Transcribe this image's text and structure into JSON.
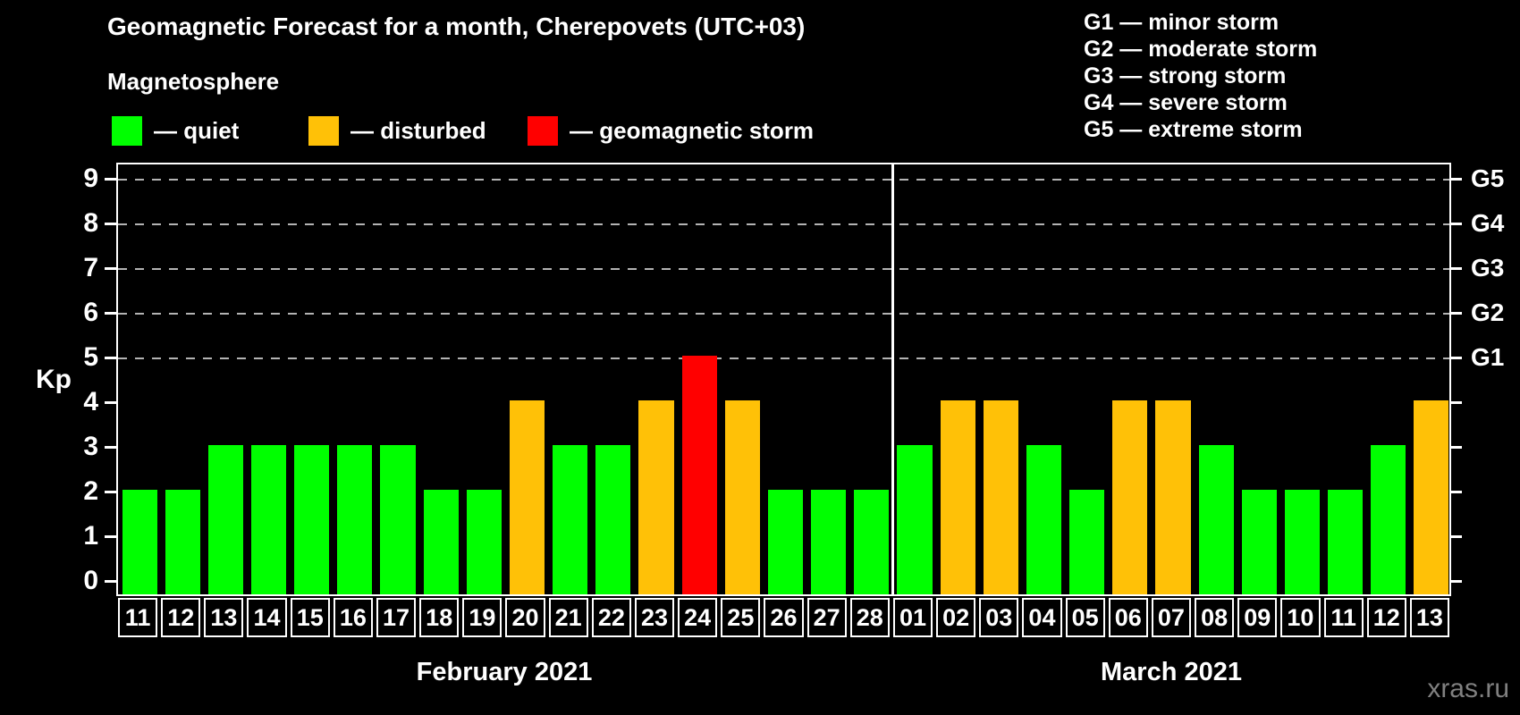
{
  "title": "Geomagnetic Forecast for a month, Cherepovets (UTC+03)",
  "subtitle": "Magnetosphere",
  "legend": {
    "items": [
      {
        "name": "quiet",
        "label": "— quiet",
        "color": "#00ff00"
      },
      {
        "name": "disturbed",
        "label": "— disturbed",
        "color": "#ffc107"
      },
      {
        "name": "storm",
        "label": "— geomagnetic storm",
        "color": "#ff0000"
      }
    ]
  },
  "g_legend": [
    "G1 — minor storm",
    "G2 — moderate storm",
    "G3 — strong storm",
    "G4 — severe storm",
    "G5 — extreme storm"
  ],
  "axis": {
    "y_label": "Kp",
    "y_ticks": [
      0,
      1,
      2,
      3,
      4,
      5,
      6,
      7,
      8,
      9
    ],
    "right_labels": [
      {
        "label": "G1",
        "kp": 5
      },
      {
        "label": "G2",
        "kp": 6
      },
      {
        "label": "G3",
        "kp": 7
      },
      {
        "label": "G4",
        "kp": 8
      },
      {
        "label": "G5",
        "kp": 9
      }
    ],
    "gridline_levels": [
      5,
      6,
      7,
      8,
      9
    ]
  },
  "months": [
    {
      "name": "February 2021",
      "days": [
        "11",
        "12",
        "13",
        "14",
        "15",
        "16",
        "17",
        "18",
        "19",
        "20",
        "21",
        "22",
        "23",
        "24",
        "25",
        "26",
        "27",
        "28"
      ],
      "kp": [
        2,
        2,
        3,
        3,
        3,
        3,
        3,
        2,
        2,
        4,
        3,
        3,
        4,
        5,
        4,
        2,
        2,
        2
      ]
    },
    {
      "name": "March 2021",
      "days": [
        "01",
        "02",
        "03",
        "04",
        "05",
        "06",
        "07",
        "08",
        "09",
        "10",
        "11",
        "12",
        "13"
      ],
      "kp": [
        3,
        4,
        4,
        3,
        2,
        4,
        4,
        3,
        2,
        2,
        2,
        3,
        4
      ]
    }
  ],
  "watermark": "xras.ru",
  "colors": {
    "background": "#000000",
    "quiet": "#00ff00",
    "disturbed": "#ffc107",
    "storm": "#ff0000",
    "grid": "#b3b3b3",
    "axis": "#ffffff",
    "watermark": "#808080"
  },
  "chart_data": {
    "type": "bar",
    "title": "Geomagnetic Forecast for a month, Cherepovets (UTC+03)",
    "xlabel": "",
    "ylabel": "Kp",
    "ylim": [
      0,
      9.7
    ],
    "grid": "dashed horizontal at Kp 5-9 only",
    "legend_position": "top-left (colors) and top-right (G-scale)",
    "right_axis_map": {
      "G1": 5,
      "G2": 6,
      "G3": 7,
      "G4": 8,
      "G5": 9
    },
    "color_rule": {
      "quiet_kp_max": 3,
      "disturbed_kp": 4,
      "storm_kp_min": 5
    },
    "categories": [
      "Feb 11",
      "Feb 12",
      "Feb 13",
      "Feb 14",
      "Feb 15",
      "Feb 16",
      "Feb 17",
      "Feb 18",
      "Feb 19",
      "Feb 20",
      "Feb 21",
      "Feb 22",
      "Feb 23",
      "Feb 24",
      "Feb 25",
      "Feb 26",
      "Feb 27",
      "Feb 28",
      "Mar 01",
      "Mar 02",
      "Mar 03",
      "Mar 04",
      "Mar 05",
      "Mar 06",
      "Mar 07",
      "Mar 08",
      "Mar 09",
      "Mar 10",
      "Mar 11",
      "Mar 12",
      "Mar 13"
    ],
    "values": [
      2,
      2,
      3,
      3,
      3,
      3,
      3,
      2,
      2,
      4,
      3,
      3,
      4,
      5,
      4,
      2,
      2,
      2,
      3,
      4,
      4,
      3,
      2,
      4,
      4,
      3,
      2,
      2,
      2,
      3,
      4
    ],
    "statuses": [
      "quiet",
      "quiet",
      "quiet",
      "quiet",
      "quiet",
      "quiet",
      "quiet",
      "quiet",
      "quiet",
      "disturbed",
      "quiet",
      "quiet",
      "disturbed",
      "storm",
      "disturbed",
      "quiet",
      "quiet",
      "quiet",
      "quiet",
      "disturbed",
      "disturbed",
      "quiet",
      "quiet",
      "disturbed",
      "disturbed",
      "quiet",
      "quiet",
      "quiet",
      "quiet",
      "quiet",
      "disturbed"
    ]
  }
}
